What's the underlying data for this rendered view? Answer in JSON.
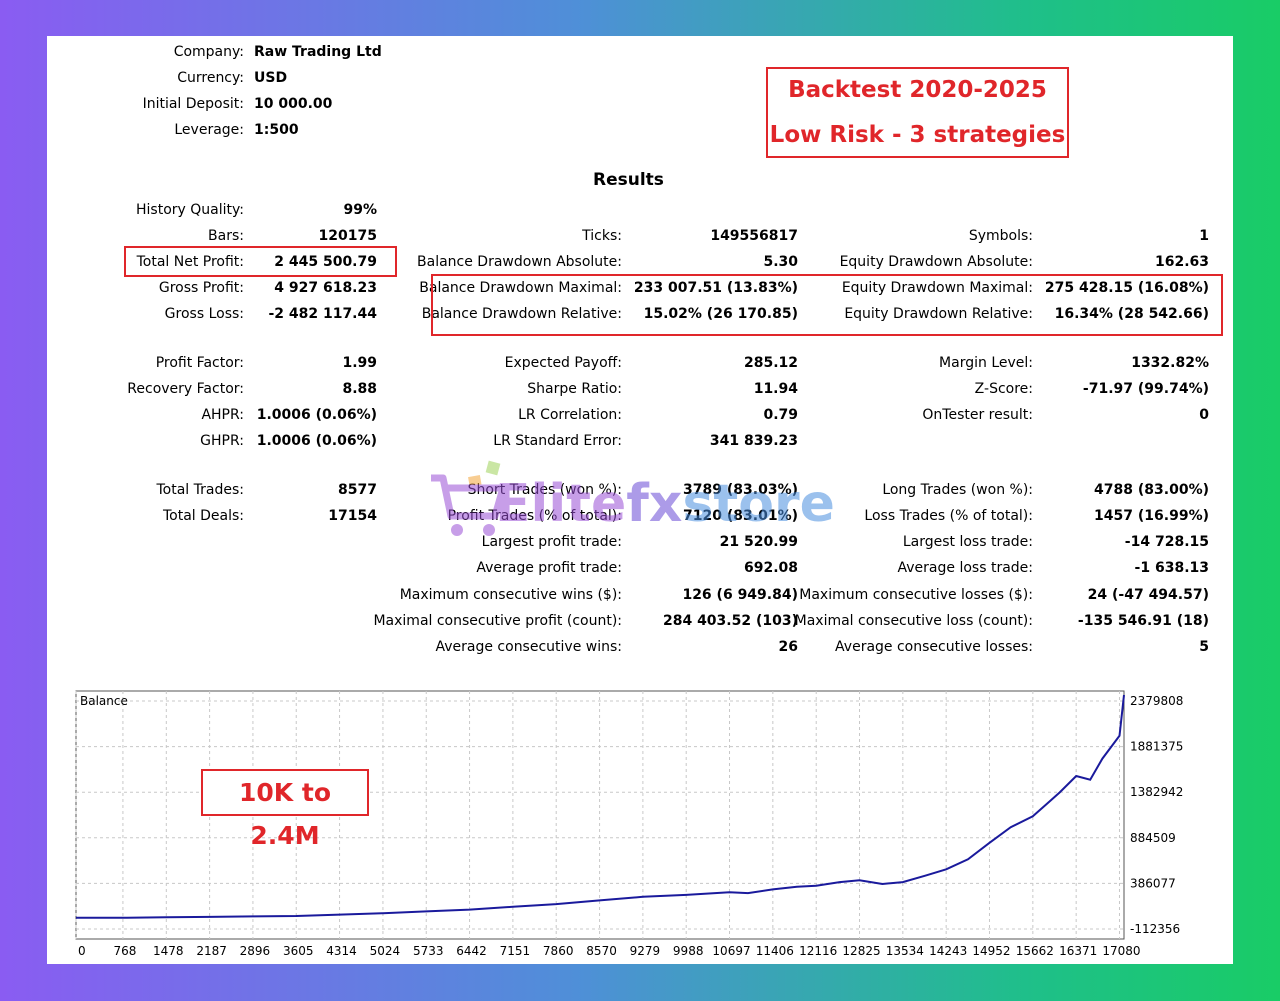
{
  "header": {
    "company_label": "Company:",
    "company_value": "Raw Trading Ltd",
    "currency_label": "Currency:",
    "currency_value": "USD",
    "deposit_label": "Initial Deposit:",
    "deposit_value": "10 000.00",
    "leverage_label": "Leverage:",
    "leverage_value": "1:500"
  },
  "promo": {
    "line1": "Backtest 2020-2025",
    "line2": "Low Risk - 3 strategies"
  },
  "results_title": "Results",
  "col1": {
    "history_quality_label": "History Quality:",
    "history_quality_value": "99%",
    "bars_label": "Bars:",
    "bars_value": "120175",
    "net_profit_label": "Total Net Profit:",
    "net_profit_value": "2 445 500.79",
    "gross_profit_label": "Gross Profit:",
    "gross_profit_value": "4 927 618.23",
    "gross_loss_label": "Gross Loss:",
    "gross_loss_value": "-2 482 117.44",
    "profit_factor_label": "Profit Factor:",
    "profit_factor_value": "1.99",
    "recovery_factor_label": "Recovery Factor:",
    "recovery_factor_value": "8.88",
    "ahpr_label": "AHPR:",
    "ahpr_value": "1.0006 (0.06%)",
    "ghpr_label": "GHPR:",
    "ghpr_value": "1.0006 (0.06%)",
    "total_trades_label": "Total Trades:",
    "total_trades_value": "8577",
    "total_deals_label": "Total Deals:",
    "total_deals_value": "17154"
  },
  "col2": {
    "ticks_label": "Ticks:",
    "ticks_value": "149556817",
    "bal_dd_abs_label": "Balance Drawdown Absolute:",
    "bal_dd_abs_value": "5.30",
    "bal_dd_max_label": "Balance Drawdown Maximal:",
    "bal_dd_max_value": "233 007.51 (13.83%)",
    "bal_dd_rel_label": "Balance Drawdown Relative:",
    "bal_dd_rel_value": "15.02% (26 170.85)",
    "exp_payoff_label": "Expected Payoff:",
    "exp_payoff_value": "285.12",
    "sharpe_label": "Sharpe Ratio:",
    "sharpe_value": "11.94",
    "lr_corr_label": "LR Correlation:",
    "lr_corr_value": "0.79",
    "lr_err_label": "LR Standard Error:",
    "lr_err_value": "341 839.23",
    "short_trades_label": "Short Trades (won %):",
    "short_trades_value": "3789 (83.03%)",
    "profit_trades_label": "Profit Trades (% of total):",
    "profit_trades_value": "7120 (83.01%)",
    "largest_profit_label": "Largest profit trade:",
    "largest_profit_value": "21 520.99",
    "avg_profit_label": "Average profit trade:",
    "avg_profit_value": "692.08",
    "max_cons_wins_label": "Maximum consecutive wins ($):",
    "max_cons_wins_value": "126 (6 949.84)",
    "maximal_cons_profit_label": "Maximal consecutive profit (count):",
    "maximal_cons_profit_value": "284 403.52 (103)",
    "avg_cons_wins_label": "Average consecutive wins:",
    "avg_cons_wins_value": "26"
  },
  "col3": {
    "symbols_label": "Symbols:",
    "symbols_value": "1",
    "eq_dd_abs_label": "Equity Drawdown Absolute:",
    "eq_dd_abs_value": "162.63",
    "eq_dd_max_label": "Equity Drawdown Maximal:",
    "eq_dd_max_value": "275 428.15 (16.08%)",
    "eq_dd_rel_label": "Equity Drawdown Relative:",
    "eq_dd_rel_value": "16.34% (28 542.66)",
    "margin_label": "Margin Level:",
    "margin_value": "1332.82%",
    "zscore_label": "Z-Score:",
    "zscore_value": "-71.97 (99.74%)",
    "ontester_label": "OnTester result:",
    "ontester_value": "0",
    "long_trades_label": "Long Trades (won %):",
    "long_trades_value": "4788 (83.00%)",
    "loss_trades_label": "Loss Trades (% of total):",
    "loss_trades_value": "1457 (16.99%)",
    "largest_loss_label": "Largest loss trade:",
    "largest_loss_value": "-14 728.15",
    "avg_loss_label": "Average loss trade:",
    "avg_loss_value": "-1 638.13",
    "max_cons_losses_label": "Maximum consecutive losses ($):",
    "max_cons_losses_value": "24 (-47 494.57)",
    "maximal_cons_loss_label": "Maximal consecutive loss (count):",
    "maximal_cons_loss_value": "-135 546.91 (18)",
    "avg_cons_losses_label": "Average consecutive losses:",
    "avg_cons_losses_value": "5"
  },
  "watermark": {
    "brand_part1": "Elite",
    "brand_part2": "fx",
    "brand_part3": "store"
  },
  "chart_label_tag": "10K to 2.4M",
  "colors": {
    "accent_red": "#e0262a",
    "line_blue": "#1a1a9c",
    "grid": "#c8c8c8"
  },
  "chart_data": {
    "type": "line",
    "title": "Balance",
    "x_ticks": [
      "0",
      "768",
      "1478",
      "2187",
      "2896",
      "3605",
      "4314",
      "5024",
      "5733",
      "6442",
      "7151",
      "7860",
      "8570",
      "9279",
      "9988",
      "10697",
      "11406",
      "12116",
      "12825",
      "13534",
      "14243",
      "14952",
      "15662",
      "16371",
      "17080"
    ],
    "y_ticks": [
      "2379808",
      "1881375",
      "1382942",
      "884509",
      "386077",
      "-112356"
    ],
    "ylim": [
      -112356,
      2379808
    ],
    "xlim": [
      0,
      17154
    ],
    "series": [
      {
        "x": [
          0,
          768,
          1478,
          2187,
          2896,
          3605,
          4314,
          5024,
          5733,
          6442,
          7151,
          7860,
          8570,
          9279,
          9988,
          10697,
          11000,
          11406,
          11800,
          12116,
          12500,
          12825,
          13200,
          13534,
          13900,
          14243,
          14600,
          14952,
          15300,
          15662,
          15900,
          16100,
          16371,
          16600,
          16800,
          17080,
          17154
        ],
        "y": [
          10000,
          10000,
          15000,
          20000,
          25000,
          30000,
          45000,
          60000,
          80000,
          100000,
          130000,
          160000,
          200000,
          240000,
          260000,
          290000,
          280000,
          320000,
          350000,
          360000,
          400000,
          420000,
          380000,
          400000,
          470000,
          540000,
          650000,
          830000,
          1000000,
          1120000,
          1260000,
          1380000,
          1560000,
          1520000,
          1750000,
          2000000,
          2445500
        ]
      }
    ]
  }
}
